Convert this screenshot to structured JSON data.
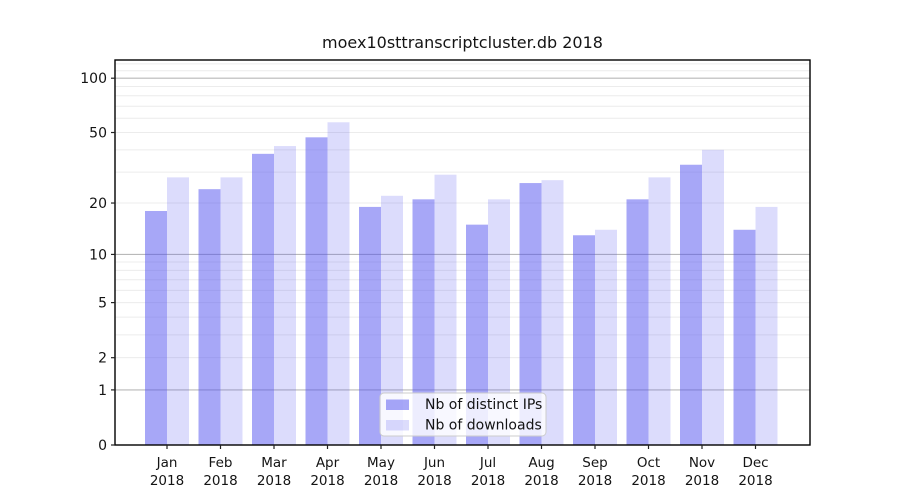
{
  "title": "moex10sttranscriptcluster.db 2018",
  "chart_data": {
    "type": "bar",
    "title": "moex10sttranscriptcluster.db 2018",
    "categories": [
      "Jan",
      "Feb",
      "Mar",
      "Apr",
      "May",
      "Jun",
      "Jul",
      "Aug",
      "Sep",
      "Oct",
      "Nov",
      "Dec"
    ],
    "year_label": "2018",
    "series": [
      {
        "name": "Nb of distinct IPs",
        "key": "ips",
        "values": [
          18,
          24,
          38,
          47,
          19,
          21,
          15,
          26,
          13,
          21,
          33,
          14
        ],
        "color": "rgba(80,80,240,0.5)"
      },
      {
        "name": "Nb of downloads",
        "key": "downloads",
        "values": [
          28,
          28,
          42,
          57,
          22,
          29,
          21,
          27,
          14,
          28,
          40,
          19
        ],
        "color": "rgba(80,80,240,0.2)"
      }
    ],
    "yscale": "log1p",
    "ylim": [
      0,
      128
    ],
    "ytick_labels": [
      100,
      50,
      20,
      10,
      5,
      2,
      1,
      0
    ],
    "grid_major_values": [
      1,
      10,
      100
    ],
    "grid_minor_values": [
      2,
      3,
      4,
      5,
      6,
      7,
      8,
      9,
      20,
      30,
      40,
      50,
      60,
      70,
      80,
      90,
      110,
      120
    ],
    "grid": "on",
    "legend_position": "lower center"
  },
  "colors": {
    "major_grid": "#b9b9b9",
    "minor_grid": "#ececec",
    "spine": "#000000",
    "tick": "#222222",
    "text": "#141414",
    "legend_bg": "rgba(255,255,255,0.8)",
    "legend_border": "#cccccc"
  }
}
